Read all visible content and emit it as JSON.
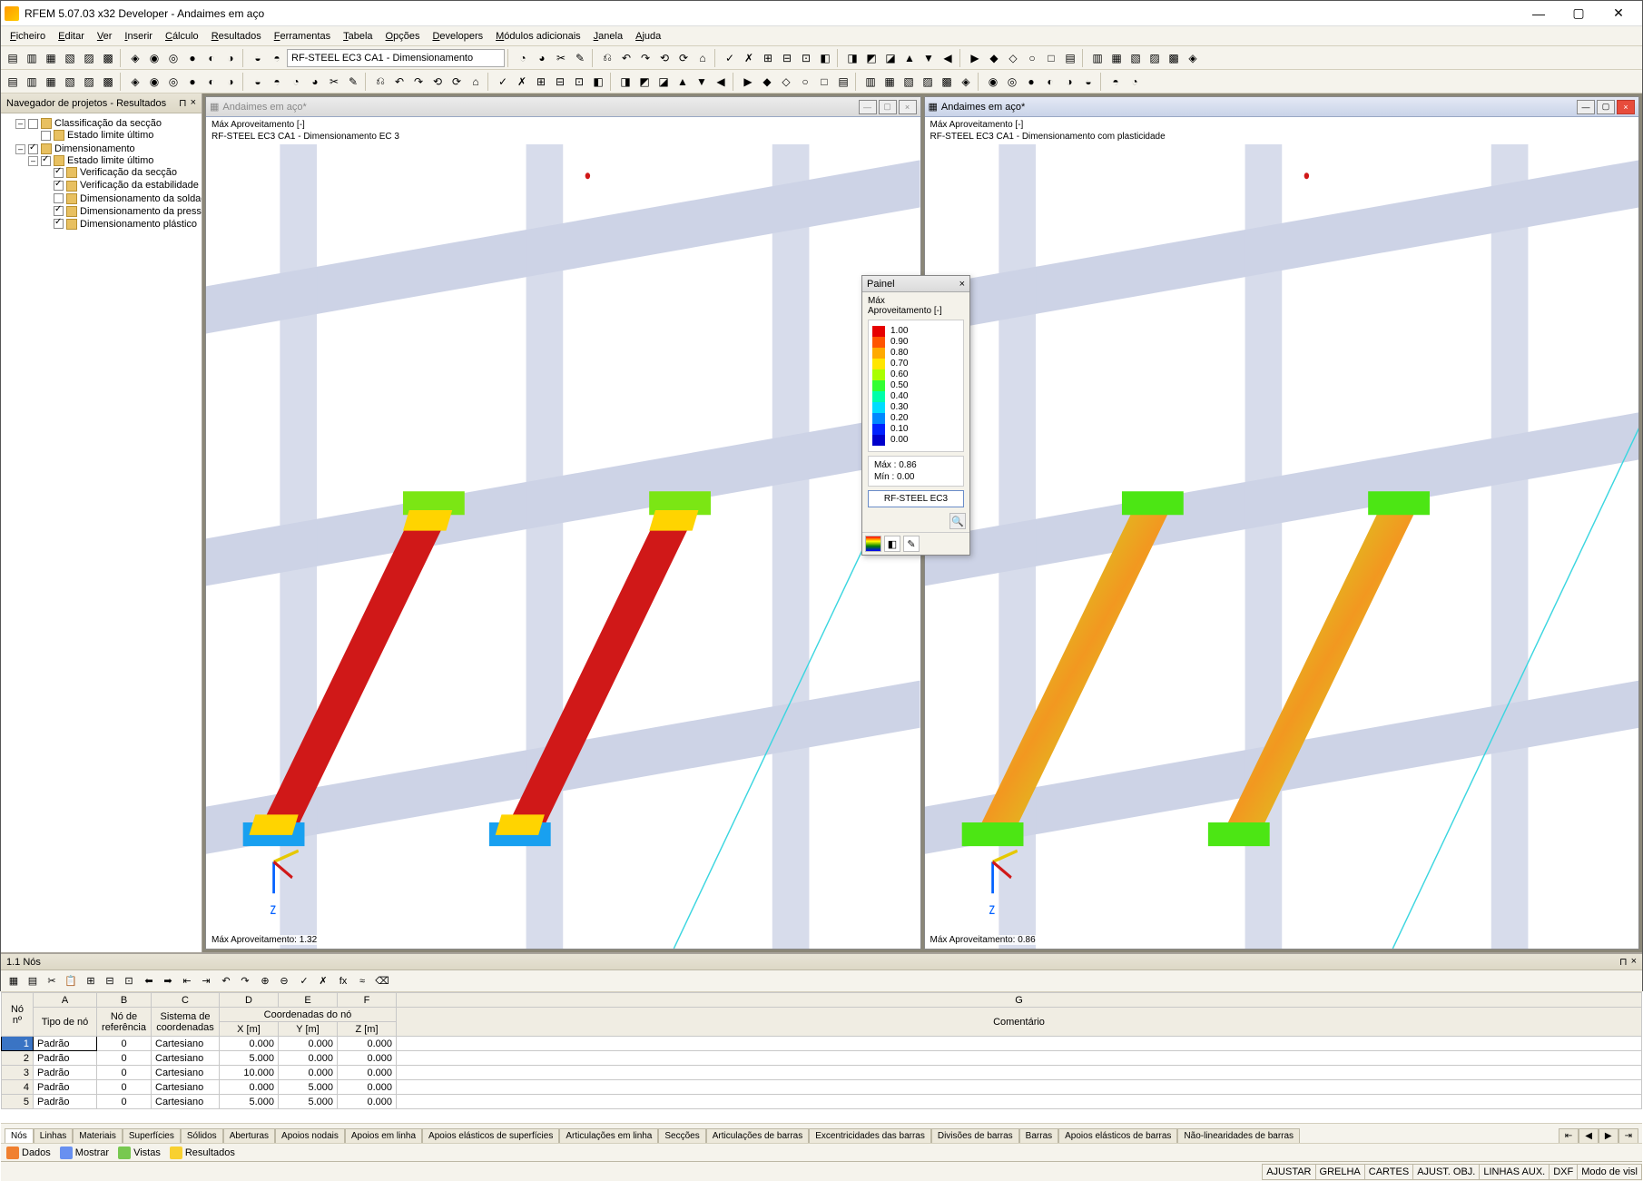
{
  "app": {
    "title": "RFEM 5.07.03 x32 Developer - Andaimes em aço"
  },
  "menu": [
    "Ficheiro",
    "Editar",
    "Ver",
    "Inserir",
    "Cálculo",
    "Resultados",
    "Ferramentas",
    "Tabela",
    "Opções",
    "Developers",
    "Módulos adicionais",
    "Janela",
    "Ajuda"
  ],
  "toolbar1_combo": "RF-STEEL EC3 CA1 - Dimensionamento",
  "navigator": {
    "title": "Navegador de projetos - Resultados",
    "tree": [
      {
        "label": "Classificação da secção",
        "check": false,
        "children": [
          {
            "label": "Estado limite último",
            "check": false
          }
        ]
      },
      {
        "label": "Dimensionamento",
        "check": true,
        "children": [
          {
            "label": "Estado limite último",
            "check": true,
            "children": [
              {
                "label": "Verificação da secção",
                "check": true
              },
              {
                "label": "Verificação da estabilidade",
                "check": true
              },
              {
                "label": "Dimensionamento da soldadura",
                "check": false
              },
              {
                "label": "Dimensionamento da pressão",
                "check": true
              },
              {
                "label": "Dimensionamento plástico",
                "check": true
              }
            ]
          }
        ]
      }
    ]
  },
  "viewportLeft": {
    "title": "Andaimes em aço*",
    "info1": "Máx Aproveitamento [-]",
    "info2": "RF-STEEL EC3 CA1 - Dimensionamento EC 3",
    "footer": "Máx Aproveitamento: 1.32",
    "barcolor_main": "#d01818",
    "barcolor_tip1": "#7be614",
    "barcolor_tip2": "#18a0f0",
    "barcolor_tip3": "#ffd400"
  },
  "viewportRight": {
    "title": "Andaimes em aço*",
    "info1": "Máx Aproveitamento [-]",
    "info2": "RF-STEEL EC3 CA1 - Dimensionamento com plasticidade",
    "footer": "Máx Aproveitamento: 0.86",
    "barcolor_main1": "#f29820",
    "barcolor_main2": "#cde21e",
    "barcolor_tip": "#4ce614"
  },
  "painel": {
    "title": "Painel",
    "sub1": "Máx",
    "sub2": "Aproveitamento [-]",
    "legend": [
      {
        "v": "1.00",
        "c": "#e60000"
      },
      {
        "v": "0.90",
        "c": "#ff5500"
      },
      {
        "v": "0.80",
        "c": "#ffaa00"
      },
      {
        "v": "0.70",
        "c": "#ffe600"
      },
      {
        "v": "0.60",
        "c": "#aaff00"
      },
      {
        "v": "0.50",
        "c": "#33ff33"
      },
      {
        "v": "0.40",
        "c": "#00ffaa"
      },
      {
        "v": "0.30",
        "c": "#00ddff"
      },
      {
        "v": "0.20",
        "c": "#0088ff"
      },
      {
        "v": "0.10",
        "c": "#0022ff"
      },
      {
        "v": "0.00",
        "c": "#0000cc"
      }
    ],
    "max": "Máx  :   0.86",
    "min": "Mín   :   0.00",
    "button": "RF-STEEL EC3"
  },
  "table": {
    "title": "1.1 Nós",
    "headers_group": {
      "no": "Nó\nnº",
      "a": "A",
      "b": "B",
      "c": "C",
      "d": "D",
      "e": "E",
      "f": "F",
      "g": "G",
      "coord": "Coordenadas do nó"
    },
    "headers": [
      "Tipo de nó",
      "Nó de\nreferência",
      "Sistema de\ncoordenadas",
      "X [m]",
      "Y [m]",
      "Z [m]",
      "Comentário"
    ],
    "rows": [
      {
        "n": "1",
        "tipo": "Padrão",
        "ref": "0",
        "sist": "Cartesiano",
        "x": "0.000",
        "y": "0.000",
        "z": "0.000",
        "c": ""
      },
      {
        "n": "2",
        "tipo": "Padrão",
        "ref": "0",
        "sist": "Cartesiano",
        "x": "5.000",
        "y": "0.000",
        "z": "0.000",
        "c": ""
      },
      {
        "n": "3",
        "tipo": "Padrão",
        "ref": "0",
        "sist": "Cartesiano",
        "x": "10.000",
        "y": "0.000",
        "z": "0.000",
        "c": ""
      },
      {
        "n": "4",
        "tipo": "Padrão",
        "ref": "0",
        "sist": "Cartesiano",
        "x": "0.000",
        "y": "5.000",
        "z": "0.000",
        "c": ""
      },
      {
        "n": "5",
        "tipo": "Padrão",
        "ref": "0",
        "sist": "Cartesiano",
        "x": "5.000",
        "y": "5.000",
        "z": "0.000",
        "c": ""
      }
    ],
    "tabs": [
      "Nós",
      "Linhas",
      "Materiais",
      "Superfícies",
      "Sólidos",
      "Aberturas",
      "Apoios nodais",
      "Apoios em linha",
      "Apoios elásticos de superfícies",
      "Articulações em linha",
      "Secções",
      "Articulações de barras",
      "Excentricidades das barras",
      "Divisões de barras",
      "Barras",
      "Apoios elásticos de barras",
      "Não-linearidades de barras"
    ]
  },
  "bottombar": [
    {
      "ico": "#f08030",
      "label": "Dados"
    },
    {
      "ico": "#6890f0",
      "label": "Mostrar"
    },
    {
      "ico": "#78c850",
      "label": "Vistas"
    },
    {
      "ico": "#f8d030",
      "label": "Resultados"
    }
  ],
  "statusbar": [
    "AJUSTAR",
    "GRELHA",
    "CARTES",
    "AJUST. OBJ.",
    "LINHAS AUX.",
    "DXF",
    "Modo de visl"
  ]
}
